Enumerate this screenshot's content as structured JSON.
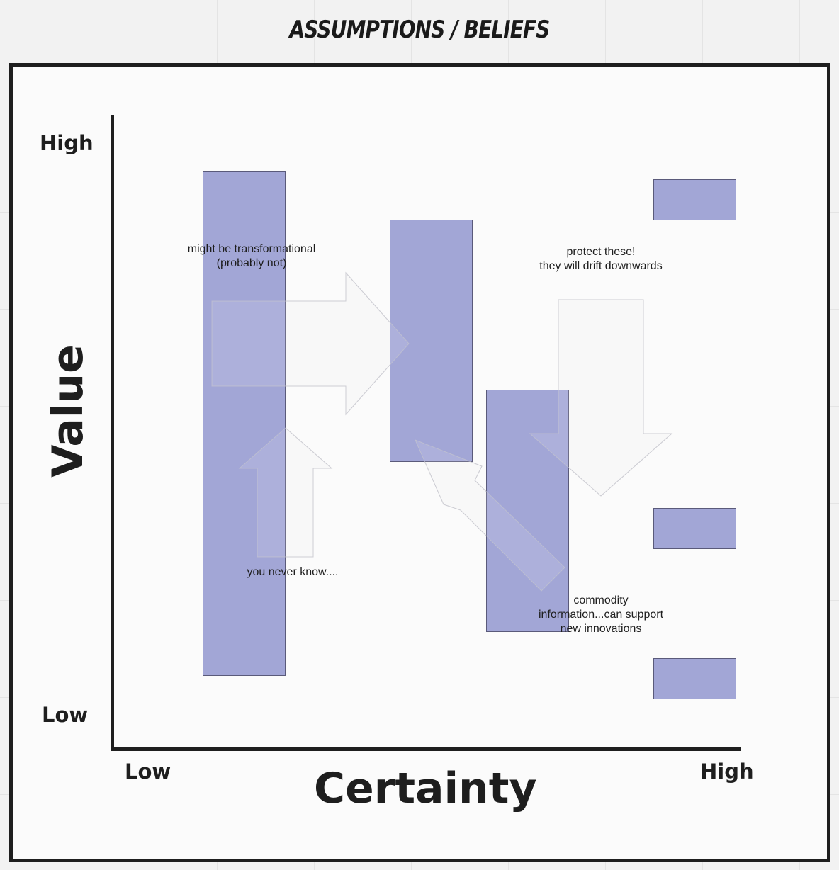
{
  "title": "ASSUMPTIONS / BELIEFS",
  "axes": {
    "y_title": "Value",
    "x_title": "Certainty",
    "y_high": "High",
    "y_low": "Low",
    "x_low": "Low",
    "x_high": "High"
  },
  "notes": {
    "transformational": "might be transformational\n(probably not)",
    "protect": "protect these!\nthey will drift downwards",
    "never_know": "you never know....",
    "commodity": "commodity\ninformation...can support\nnew innovations"
  },
  "colors": {
    "box_fill": "#8c91cd",
    "axis": "#1e1e1e"
  }
}
